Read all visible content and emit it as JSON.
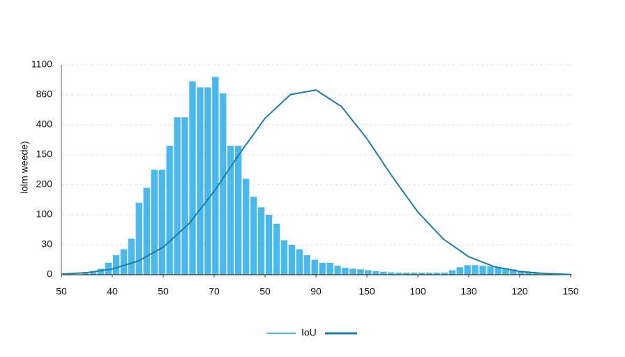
{
  "chart_data": {
    "type": "histogram",
    "ylabel": "lolm weede)",
    "xlim": [
      0,
      10
    ],
    "ylim": [
      0,
      7
    ],
    "grid": true,
    "color": "#4ab8ec",
    "xticks": [
      {
        "value": 0,
        "label": "50"
      },
      {
        "value": 1,
        "label": "40"
      },
      {
        "value": 2,
        "label": "50"
      },
      {
        "value": 3,
        "label": "70"
      },
      {
        "value": 4,
        "label": "50"
      },
      {
        "value": 5,
        "label": "90"
      },
      {
        "value": 6,
        "label": "150"
      },
      {
        "value": 7,
        "label": "100"
      },
      {
        "value": 8,
        "label": "130"
      },
      {
        "value": 9,
        "label": "120"
      },
      {
        "value": 10,
        "label": "150"
      }
    ],
    "yticks": [
      {
        "value": 0,
        "label": "0"
      },
      {
        "value": 1,
        "label": "30"
      },
      {
        "value": 2,
        "label": "100"
      },
      {
        "value": 3,
        "label": "200"
      },
      {
        "value": 4,
        "label": "150"
      },
      {
        "value": 5,
        "label": "400"
      },
      {
        "value": 6,
        "label": "860"
      },
      {
        "value": 7,
        "label": "1100"
      }
    ],
    "bins": [
      0.4,
      0.55,
      0.7,
      0.85,
      1.0,
      1.15,
      1.3,
      1.45,
      1.6,
      1.75,
      1.9,
      2.05,
      2.2,
      2.35,
      2.5,
      2.65,
      2.8,
      2.95,
      3.1,
      3.25,
      3.4,
      3.55,
      3.7,
      3.85,
      4.0,
      4.15,
      4.3,
      4.45,
      4.6,
      4.75,
      4.9,
      5.05,
      5.2,
      5.35,
      5.5,
      5.65,
      5.8,
      5.95,
      6.1,
      6.25,
      6.4,
      6.55,
      6.7,
      6.85,
      7.0,
      7.15,
      7.3,
      7.45,
      7.6,
      7.75,
      7.9,
      8.05,
      8.2,
      8.35,
      8.5,
      8.65,
      8.8,
      8.95,
      9.1,
      9.25,
      9.4
    ],
    "counts": [
      0.05,
      0.1,
      0.2,
      0.4,
      0.65,
      0.85,
      1.2,
      2.4,
      2.9,
      3.5,
      3.5,
      4.3,
      5.25,
      5.25,
      6.45,
      6.25,
      6.25,
      6.6,
      6.05,
      4.3,
      4.3,
      3.2,
      2.6,
      2.25,
      2.0,
      1.7,
      1.15,
      1.0,
      0.85,
      0.65,
      0.5,
      0.4,
      0.4,
      0.3,
      0.23,
      0.2,
      0.18,
      0.15,
      0.12,
      0.1,
      0.08,
      0.07,
      0.07,
      0.07,
      0.07,
      0.07,
      0.07,
      0.07,
      0.15,
      0.25,
      0.32,
      0.32,
      0.3,
      0.28,
      0.25,
      0.22,
      0.18,
      0.12,
      0.08,
      0.05
    ],
    "curve": {
      "name": "IoU",
      "color": "#1a7fa8",
      "x": [
        0,
        0.5,
        1,
        1.5,
        2,
        2.5,
        3,
        3.5,
        4,
        4.5,
        5,
        5.5,
        6,
        6.5,
        7,
        7.5,
        8,
        8.5,
        9,
        9.5,
        10
      ],
      "values": [
        0.02,
        0.07,
        0.19,
        0.45,
        0.92,
        1.69,
        2.78,
        4.04,
        5.22,
        6.01,
        6.16,
        5.61,
        4.54,
        3.27,
        2.09,
        1.19,
        0.6,
        0.27,
        0.11,
        0.04,
        0.01
      ]
    }
  }
}
